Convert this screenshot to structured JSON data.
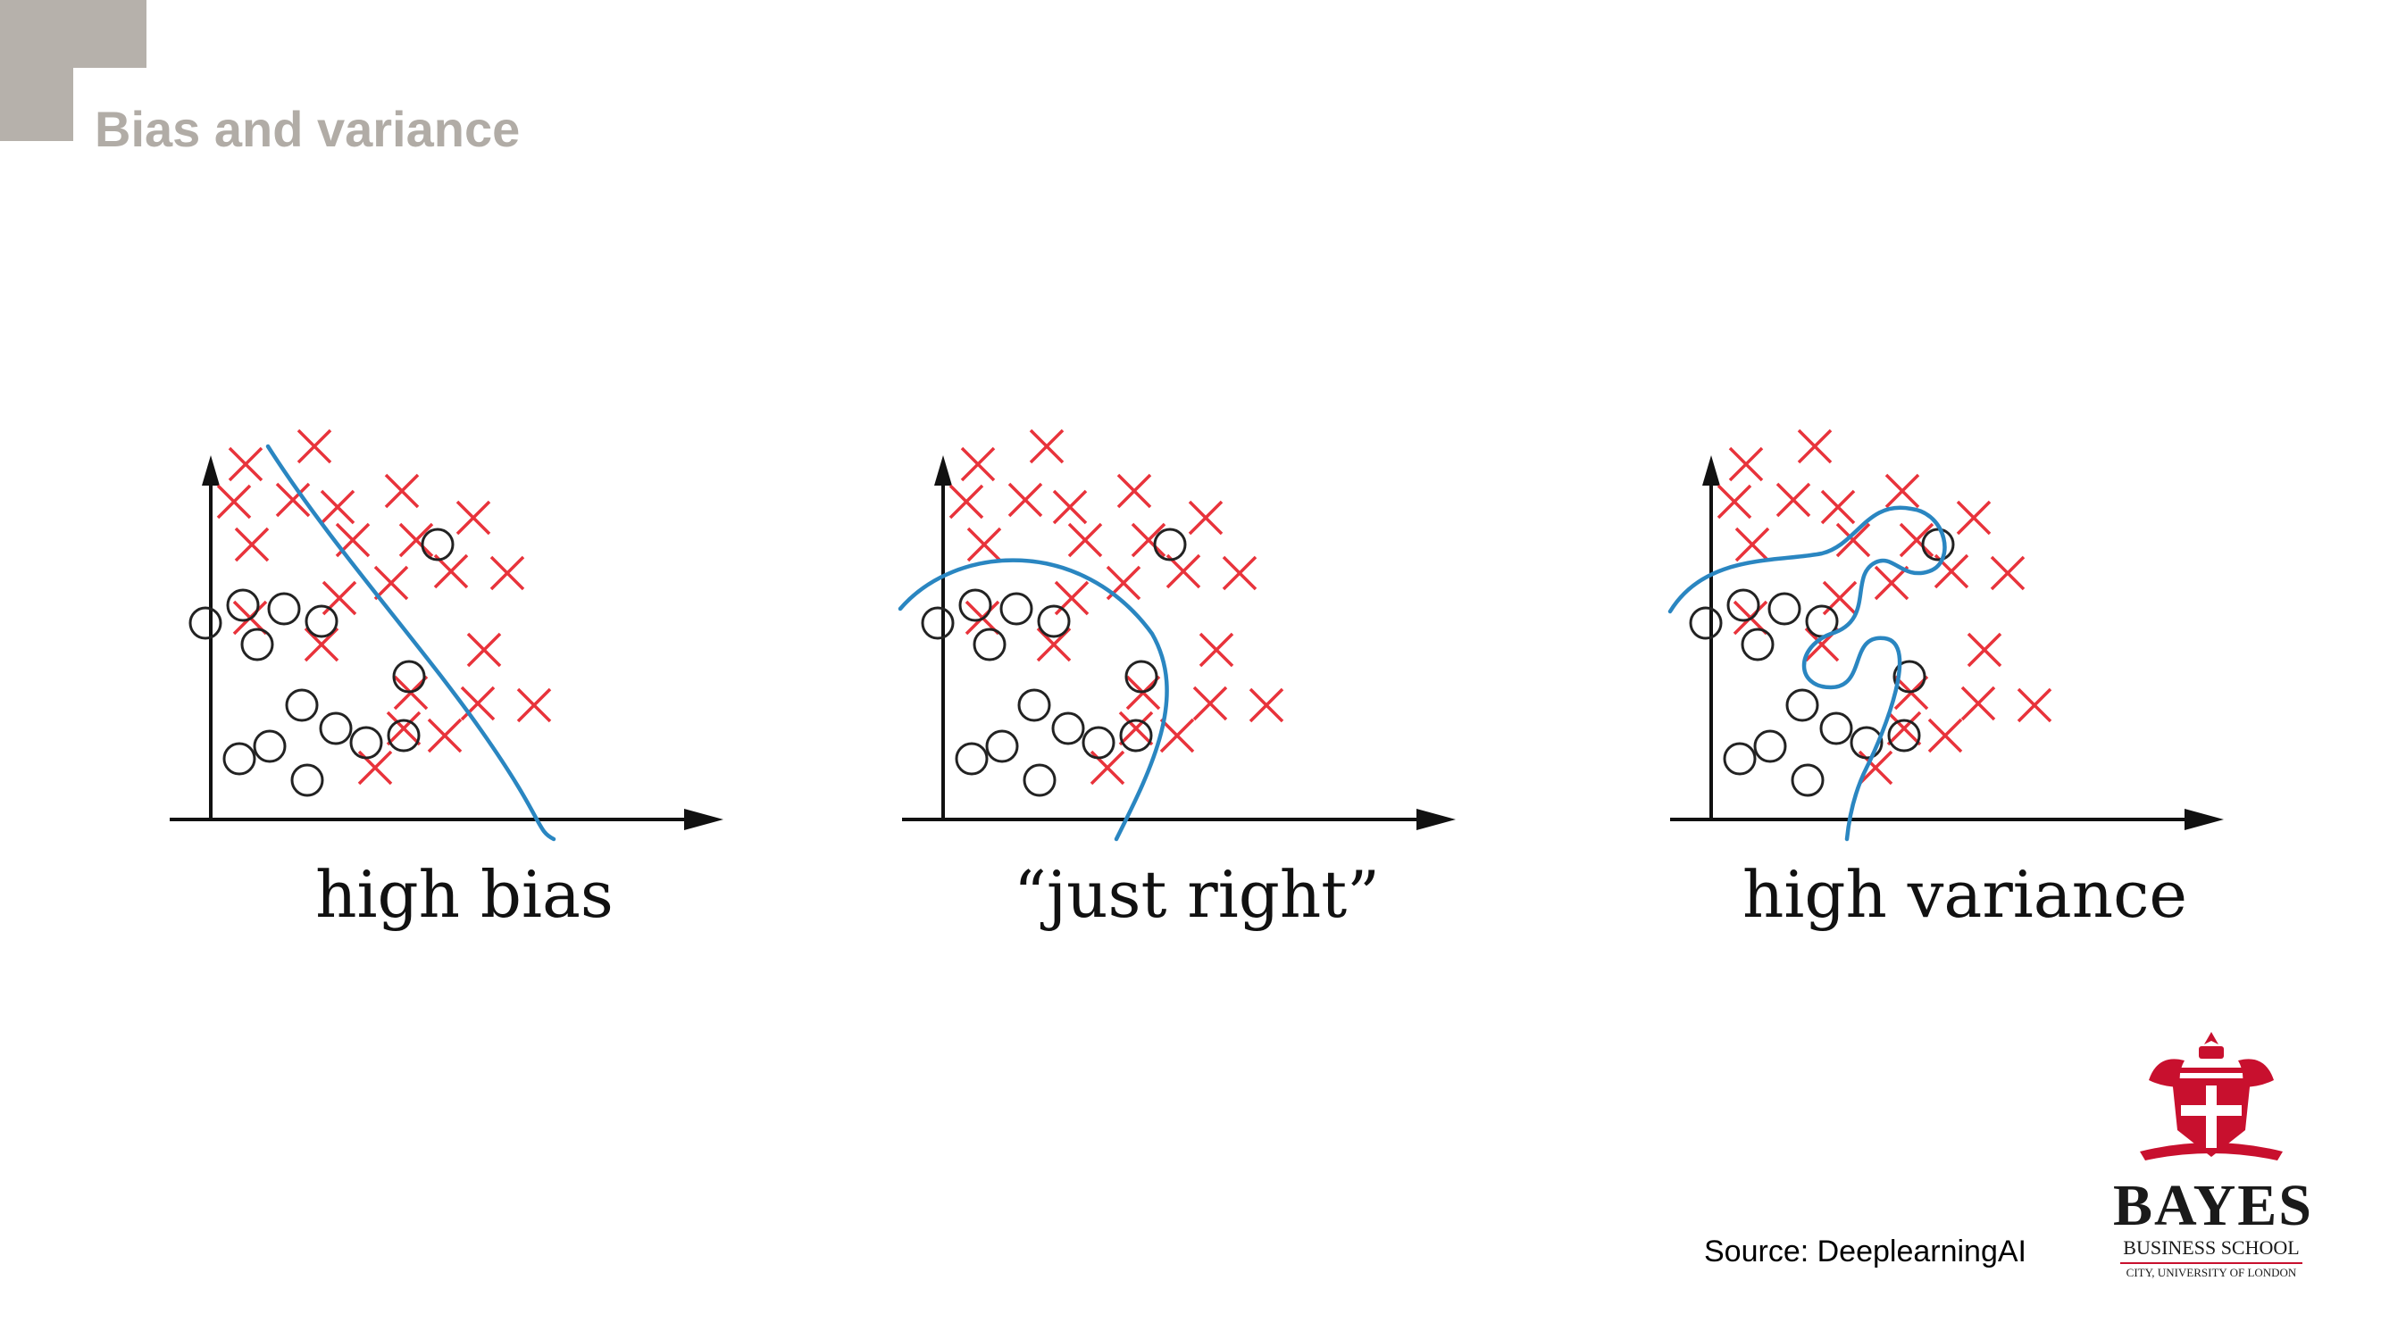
{
  "slide": {
    "title": "Bias and variance",
    "source": "Source: DeeplearningAI"
  },
  "panels": [
    {
      "label": "high bias",
      "boundary": "linear"
    },
    {
      "label": "“just right”",
      "boundary": "curved"
    },
    {
      "label": "high variance",
      "boundary": "wiggly"
    }
  ],
  "markers": {
    "cross_color": "#e8333b",
    "circle_color": "#222222",
    "boundary_color": "#2a86c1"
  },
  "logo": {
    "name": "BAYES",
    "subtitle": "BUSINESS SCHOOL",
    "city": "CITY, UNIVERSITY OF LONDON",
    "brand_color": "#c8102e"
  }
}
